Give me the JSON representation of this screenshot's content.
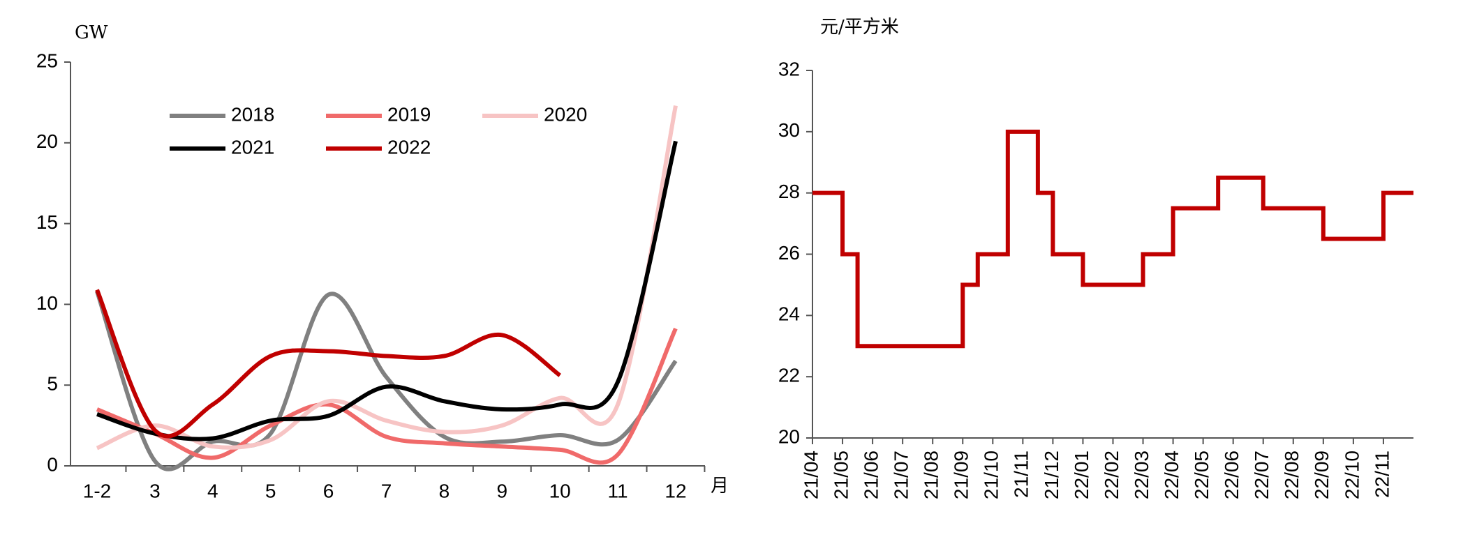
{
  "chart_data": [
    {
      "type": "line",
      "y_label": "GW",
      "x_label": "月",
      "categories": [
        "1-2",
        "3",
        "4",
        "5",
        "6",
        "7",
        "8",
        "9",
        "10",
        "11",
        "12"
      ],
      "ylim": [
        0,
        25
      ],
      "yticks": [
        0,
        5,
        10,
        15,
        20,
        25
      ],
      "smooth": true,
      "legend": "upper left",
      "series": [
        {
          "name": "2018",
          "color": "#808080",
          "values": [
            10.8,
            0.3,
            1.5,
            2.0,
            10.6,
            5.5,
            1.8,
            1.5,
            1.9,
            1.6,
            6.5
          ]
        },
        {
          "name": "2019",
          "color": "#f06a6a",
          "values": [
            3.5,
            2.0,
            0.5,
            2.5,
            3.8,
            1.8,
            1.4,
            1.2,
            1.0,
            0.7,
            8.5
          ]
        },
        {
          "name": "2020",
          "color": "#f7c4c4",
          "values": [
            1.1,
            2.5,
            1.2,
            1.6,
            4.0,
            2.8,
            2.1,
            2.5,
            4.2,
            3.8,
            22.3
          ]
        },
        {
          "name": "2021",
          "color": "#000000",
          "values": [
            3.2,
            2.0,
            1.7,
            2.8,
            3.1,
            4.9,
            4.0,
            3.5,
            3.8,
            5.2,
            20.1
          ]
        },
        {
          "name": "2022",
          "color": "#c00000",
          "values": [
            10.9,
            2.2,
            3.8,
            6.8,
            7.1,
            6.8,
            6.8,
            8.1,
            5.6,
            null,
            null
          ]
        }
      ]
    },
    {
      "type": "step",
      "y_label": "元/平方米",
      "color": "#c00000",
      "categories": [
        "21/04",
        null,
        "21/05",
        null,
        "21/06",
        null,
        "21/07",
        null,
        "21/08",
        null,
        "21/09",
        null,
        "21/10",
        null,
        "21/11",
        null,
        "21/12",
        null,
        "22/01",
        null,
        "22/02",
        null,
        "22/03",
        null,
        "22/04",
        null,
        "22/05",
        null,
        "22/06",
        null,
        "22/07",
        null,
        "22/08",
        null,
        "22/09",
        null,
        "22/10",
        null,
        "22/11",
        null
      ],
      "values": [
        28,
        28,
        26,
        23,
        23,
        23,
        23,
        23,
        23,
        23,
        25,
        26,
        26,
        30,
        30,
        28,
        26,
        26,
        25,
        25,
        25,
        25,
        26,
        26,
        27.5,
        27.5,
        27.5,
        28.5,
        28.5,
        28.5,
        27.5,
        27.5,
        27.5,
        27.5,
        26.5,
        26.5,
        26.5,
        26.5,
        28,
        28
      ],
      "ylim": [
        20,
        32
      ],
      "yticks": [
        20,
        22,
        24,
        26,
        28,
        30,
        32
      ]
    }
  ]
}
